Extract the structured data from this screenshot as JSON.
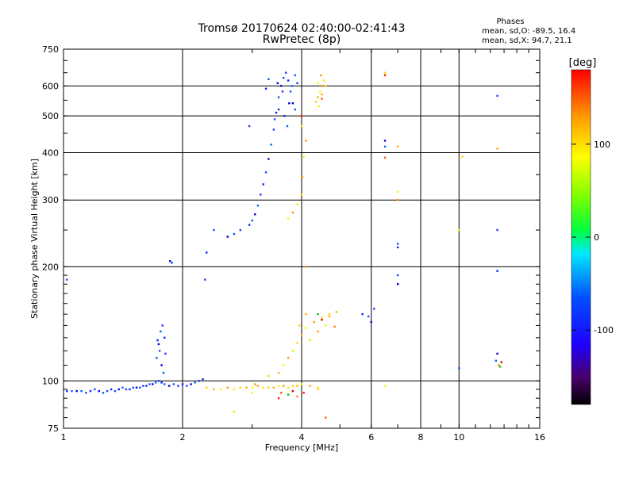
{
  "chart_data": {
    "type": "scatter",
    "title": "Tromsø 20170624 02:40:00-02:41:43",
    "subtitle": "RwPretec (8p)",
    "xlabel": "Frequency [MHz]",
    "ylabel": "Stationary phase Virtual Height [km]",
    "x_scale": "log",
    "y_scale": "log",
    "xlim": [
      1,
      16
    ],
    "ylim": [
      75,
      750
    ],
    "x_ticks": [
      1,
      2,
      4,
      6,
      8,
      10,
      16
    ],
    "x_tick_labels": [
      "1",
      "2",
      "4",
      "6",
      "8",
      "10",
      "16"
    ],
    "y_ticks": [
      75,
      100,
      200,
      300,
      400,
      500,
      600,
      750
    ],
    "y_tick_labels": [
      "75",
      "100",
      "200",
      "300",
      "400",
      "500",
      "600",
      "750"
    ],
    "grid": true,
    "phase_stats": {
      "title": "Phases",
      "line_o": "mean, sd,O: -89.5, 16.4",
      "line_x": "mean, sd,X:  94.7, 21.1"
    },
    "colorbar": {
      "label": "[deg]",
      "range": [
        -180,
        180
      ],
      "ticks": [
        100,
        0,
        -100
      ],
      "tick_labels": [
        "100",
        "0",
        "-100"
      ]
    },
    "series": [
      {
        "name": "O-mode trace (blue)",
        "points": [
          [
            1.02,
            94
          ],
          [
            1.05,
            94
          ],
          [
            1.08,
            94
          ],
          [
            1.11,
            94
          ],
          [
            1.14,
            93
          ],
          [
            1.17,
            94
          ],
          [
            1.2,
            95
          ],
          [
            1.23,
            94
          ],
          [
            1.26,
            93
          ],
          [
            1.29,
            94
          ],
          [
            1.32,
            95
          ],
          [
            1.35,
            94
          ],
          [
            1.38,
            95
          ],
          [
            1.41,
            96
          ],
          [
            1.44,
            95
          ],
          [
            1.47,
            95
          ],
          [
            1.5,
            96
          ],
          [
            1.53,
            96
          ],
          [
            1.56,
            96
          ],
          [
            1.59,
            97
          ],
          [
            1.62,
            97
          ],
          [
            1.65,
            98
          ],
          [
            1.68,
            98
          ],
          [
            1.71,
            99
          ],
          [
            1.74,
            100
          ],
          [
            1.77,
            99
          ],
          [
            1.8,
            98
          ],
          [
            1.85,
            97
          ],
          [
            1.9,
            98
          ],
          [
            1.95,
            97
          ],
          [
            2.0,
            98
          ],
          [
            2.05,
            97
          ],
          [
            2.1,
            98
          ],
          [
            2.15,
            99
          ],
          [
            2.2,
            100
          ],
          [
            2.25,
            101
          ],
          [
            1.72,
            115
          ],
          [
            1.74,
            125
          ],
          [
            1.76,
            135
          ],
          [
            1.78,
            140
          ],
          [
            1.8,
            130
          ],
          [
            1.75,
            120
          ],
          [
            1.77,
            110
          ],
          [
            1.79,
            105
          ],
          [
            1.81,
            118
          ],
          [
            1.73,
            128
          ],
          [
            1.02,
            185
          ],
          [
            1.86,
            207
          ],
          [
            1.88,
            205
          ],
          [
            2.28,
            185
          ],
          [
            2.3,
            218
          ],
          [
            2.4,
            250
          ],
          [
            2.6,
            240
          ],
          [
            2.7,
            244
          ],
          [
            2.8,
            250
          ],
          [
            2.95,
            258
          ],
          [
            3.0,
            265
          ],
          [
            3.05,
            275
          ],
          [
            3.1,
            290
          ],
          [
            3.15,
            310
          ],
          [
            3.2,
            330
          ],
          [
            3.25,
            355
          ],
          [
            3.3,
            385
          ],
          [
            3.35,
            420
          ],
          [
            3.4,
            460
          ],
          [
            3.45,
            510
          ],
          [
            3.5,
            560
          ],
          [
            3.55,
            600
          ],
          [
            3.6,
            630
          ],
          [
            3.65,
            650
          ],
          [
            3.7,
            620
          ],
          [
            3.75,
            580
          ],
          [
            3.8,
            540
          ],
          [
            3.85,
            520
          ],
          [
            3.9,
            610
          ],
          [
            3.62,
            500
          ],
          [
            3.68,
            470
          ],
          [
            3.72,
            540
          ],
          [
            3.78,
            600
          ],
          [
            3.58,
            580
          ],
          [
            3.5,
            520
          ],
          [
            3.42,
            490
          ],
          [
            3.48,
            610
          ],
          [
            3.85,
            640
          ],
          [
            2.95,
            470
          ],
          [
            3.25,
            590
          ],
          [
            3.3,
            625
          ],
          [
            6.5,
            430
          ],
          [
            6.5,
            415
          ],
          [
            7.0,
            230
          ],
          [
            7.0,
            225
          ],
          [
            7.0,
            190
          ],
          [
            7.0,
            180
          ],
          [
            10.0,
            108
          ],
          [
            12.5,
            250
          ],
          [
            12.5,
            195
          ],
          [
            12.5,
            565
          ],
          [
            12.5,
            118
          ],
          [
            12.4,
            113
          ],
          [
            6.1,
            155
          ],
          [
            5.7,
            150
          ],
          [
            5.9,
            148
          ],
          [
            6.0,
            143
          ]
        ]
      },
      {
        "name": "X-mode trace (yellow/orange)",
        "points": [
          [
            2.3,
            96
          ],
          [
            2.4,
            95
          ],
          [
            2.5,
            95
          ],
          [
            2.6,
            96
          ],
          [
            2.7,
            95
          ],
          [
            2.8,
            96
          ],
          [
            2.9,
            96
          ],
          [
            3.0,
            96
          ],
          [
            3.1,
            97
          ],
          [
            3.2,
            96
          ],
          [
            3.3,
            96
          ],
          [
            3.4,
            96
          ],
          [
            3.5,
            97
          ],
          [
            3.6,
            97
          ],
          [
            3.7,
            96
          ],
          [
            3.8,
            97
          ],
          [
            3.9,
            97
          ],
          [
            4.0,
            98
          ],
          [
            4.2,
            97
          ],
          [
            4.4,
            96
          ],
          [
            3.3,
            103
          ],
          [
            3.5,
            105
          ],
          [
            3.6,
            110
          ],
          [
            3.7,
            115
          ],
          [
            3.8,
            120
          ],
          [
            3.9,
            126
          ],
          [
            4.0,
            132
          ],
          [
            4.1,
            138
          ],
          [
            4.3,
            143
          ],
          [
            4.5,
            147
          ],
          [
            4.7,
            150
          ],
          [
            4.9,
            152
          ],
          [
            4.6,
            140
          ],
          [
            4.4,
            135
          ],
          [
            4.2,
            128
          ],
          [
            3.95,
            140
          ],
          [
            4.1,
            150
          ],
          [
            3.7,
            268
          ],
          [
            3.8,
            278
          ],
          [
            3.9,
            292
          ],
          [
            4.0,
            310
          ],
          [
            4.02,
            345
          ],
          [
            4.05,
            390
          ],
          [
            4.1,
            430
          ],
          [
            4.0,
            470
          ],
          [
            4.35,
            545
          ],
          [
            4.4,
            560
          ],
          [
            4.45,
            580
          ],
          [
            4.5,
            600
          ],
          [
            4.55,
            620
          ],
          [
            4.6,
            600
          ],
          [
            4.5,
            570
          ],
          [
            4.4,
            610
          ],
          [
            4.48,
            640
          ],
          [
            4.42,
            530
          ],
          [
            6.5,
            650
          ],
          [
            7.0,
            415
          ],
          [
            7.0,
            315
          ],
          [
            7.0,
            300
          ],
          [
            10.0,
            250
          ],
          [
            10.2,
            390
          ],
          [
            12.5,
            410
          ],
          [
            6.5,
            97
          ],
          [
            4.1,
            200
          ],
          [
            2.7,
            83
          ],
          [
            4.4,
            95
          ],
          [
            4.7,
            148
          ],
          [
            3.0,
            93
          ],
          [
            3.05,
            98
          ]
        ]
      },
      {
        "name": "Red/green scatter",
        "points": [
          [
            3.5,
            90
          ],
          [
            3.55,
            93
          ],
          [
            3.7,
            92
          ],
          [
            3.8,
            94
          ],
          [
            3.9,
            91
          ],
          [
            4.05,
            93
          ],
          [
            4.6,
            80
          ],
          [
            4.4,
            150
          ],
          [
            4.5,
            145
          ],
          [
            4.85,
            139
          ],
          [
            6.5,
            640
          ],
          [
            6.5,
            388
          ],
          [
            12.7,
            109
          ],
          [
            12.8,
            112
          ],
          [
            12.6,
            110
          ],
          [
            4.0,
            500
          ],
          [
            4.5,
            555
          ]
        ]
      }
    ]
  }
}
